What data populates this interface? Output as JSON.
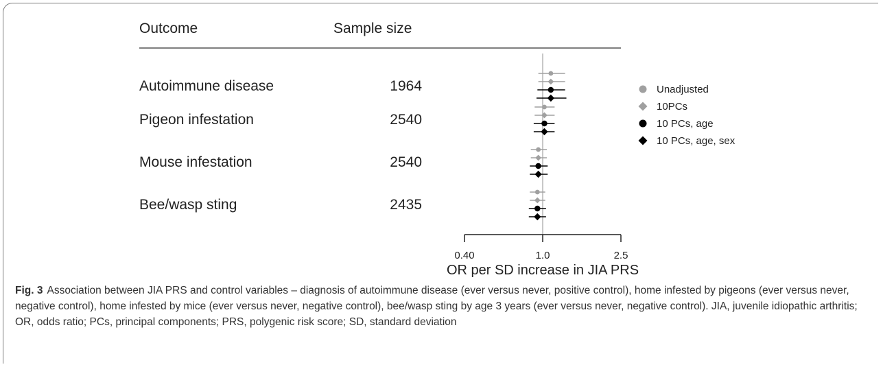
{
  "table": {
    "col_outcome": "Outcome",
    "col_sample_size": "Sample size"
  },
  "caption": {
    "label": "Fig. 3",
    "text": "Association between JIA PRS and control variables – diagnosis of autoimmune disease (ever versus never, positive control), home infested by pigeons (ever versus never, negative control), home infested by mice (ever versus never, negative control), bee/wasp sting by age 3 years (ever versus never, negative control). JIA, juvenile idiopathic arthritis; OR, odds ratio; PCs, principal components; PRS, polygenic risk score; SD, standard deviation"
  },
  "chart_data": {
    "type": "forest",
    "xlabel": "OR per SD increase in JIA PRS",
    "x_scale": "log",
    "xlim": [
      0.4,
      2.5
    ],
    "x_ticks": [
      {
        "value": 0.4,
        "label": "0.40"
      },
      {
        "value": 1.0,
        "label": "1.0"
      },
      {
        "value": 2.5,
        "label": "2.5"
      }
    ],
    "reference_line": 1.0,
    "legend_position": "right",
    "series": [
      {
        "name": "Unadjusted",
        "marker": "circle",
        "color": "#a0a0a0"
      },
      {
        "name": "10PCs",
        "marker": "diamond",
        "color": "#a0a0a0"
      },
      {
        "name": "10 PCs, age",
        "marker": "circle",
        "color": "#000000"
      },
      {
        "name": "10 PCs, age, sex",
        "marker": "diamond",
        "color": "#000000"
      }
    ],
    "outcomes": [
      {
        "label": "Autoimmune disease",
        "sample_size": "1964",
        "estimates": [
          {
            "or": 1.1,
            "lower": 0.95,
            "upper": 1.3
          },
          {
            "or": 1.1,
            "lower": 0.95,
            "upper": 1.3
          },
          {
            "or": 1.1,
            "lower": 0.94,
            "upper": 1.3
          },
          {
            "or": 1.1,
            "lower": 0.93,
            "upper": 1.32
          }
        ]
      },
      {
        "label": "Pigeon infestation",
        "sample_size": "2540",
        "estimates": [
          {
            "or": 1.02,
            "lower": 0.91,
            "upper": 1.15
          },
          {
            "or": 1.02,
            "lower": 0.91,
            "upper": 1.15
          },
          {
            "or": 1.02,
            "lower": 0.9,
            "upper": 1.15
          },
          {
            "or": 1.02,
            "lower": 0.9,
            "upper": 1.15
          }
        ]
      },
      {
        "label": "Mouse infestation",
        "sample_size": "2540",
        "estimates": [
          {
            "or": 0.95,
            "lower": 0.87,
            "upper": 1.05
          },
          {
            "or": 0.95,
            "lower": 0.87,
            "upper": 1.05
          },
          {
            "or": 0.95,
            "lower": 0.86,
            "upper": 1.06
          },
          {
            "or": 0.95,
            "lower": 0.86,
            "upper": 1.06
          }
        ]
      },
      {
        "label": "Bee/wasp sting",
        "sample_size": "2435",
        "estimates": [
          {
            "or": 0.94,
            "lower": 0.86,
            "upper": 1.03
          },
          {
            "or": 0.94,
            "lower": 0.86,
            "upper": 1.03
          },
          {
            "or": 0.94,
            "lower": 0.85,
            "upper": 1.04
          },
          {
            "or": 0.94,
            "lower": 0.85,
            "upper": 1.04
          }
        ]
      }
    ]
  }
}
